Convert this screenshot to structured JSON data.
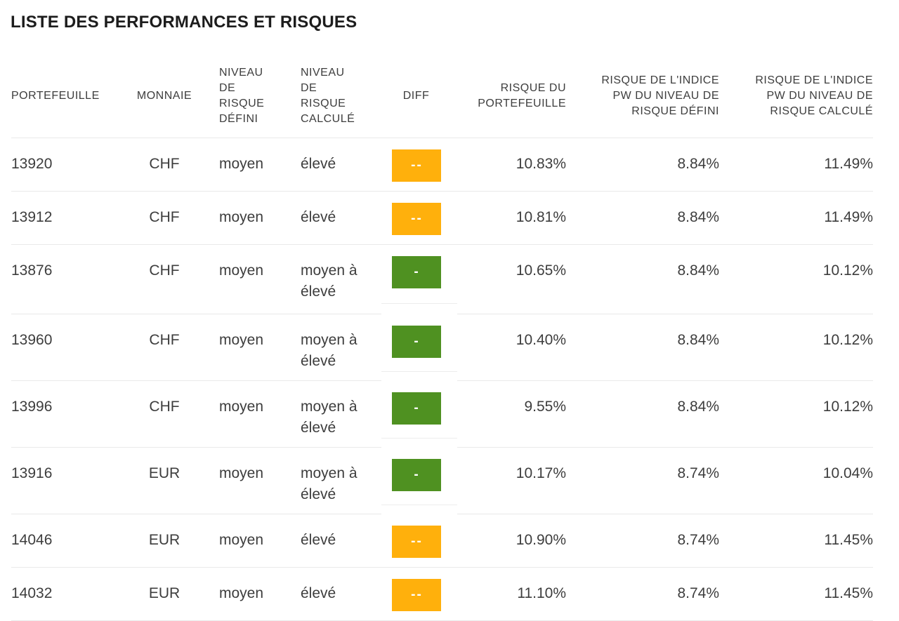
{
  "title": "LISTE DES PERFORMANCES ET RISQUES",
  "colors": {
    "diff_orange": "#FFB00C",
    "diff_green": "#4F9121",
    "row_separator": "#e9e9e9",
    "text": "#3d3d3d"
  },
  "table": {
    "columns": [
      {
        "label": "PORTEFEUILLE"
      },
      {
        "label": "MONNAIE"
      },
      {
        "label": "NIVEAU\nDE\nRISQUE\nDÉFINI"
      },
      {
        "label": "NIVEAU\nDE\nRISQUE\nCALCULÉ"
      },
      {
        "label": "DIFF"
      },
      {
        "label": "RISQUE DU\nPORTEFEUILLE"
      },
      {
        "label": "RISQUE DE L'INDICE\nPW DU NIVEAU DE\nRISQUE DÉFINI"
      },
      {
        "label": "RISQUE DE L'INDICE\nPW DU NIVEAU DE\nRISQUE CALCULÉ"
      }
    ],
    "rows": [
      {
        "portefeuille": "13920",
        "monnaie": "CHF",
        "niveau_defini": "moyen",
        "niveau_calcule": "élevé",
        "diff": "--",
        "diff_level": "orange",
        "risque_portefeuille": "10.83%",
        "risque_indice_defini": "8.84%",
        "risque_indice_calcule": "11.49%"
      },
      {
        "portefeuille": "13912",
        "monnaie": "CHF",
        "niveau_defini": "moyen",
        "niveau_calcule": "élevé",
        "diff": "--",
        "diff_level": "orange",
        "risque_portefeuille": "10.81%",
        "risque_indice_defini": "8.84%",
        "risque_indice_calcule": "11.49%"
      },
      {
        "portefeuille": "13876",
        "monnaie": "CHF",
        "niveau_defini": "moyen",
        "niveau_calcule": "moyen à\nélevé",
        "diff": "-",
        "diff_level": "green",
        "risque_portefeuille": "10.65%",
        "risque_indice_defini": "8.84%",
        "risque_indice_calcule": "10.12%"
      },
      {
        "portefeuille": "13960",
        "monnaie": "CHF",
        "niveau_defini": "moyen",
        "niveau_calcule": "moyen à\nélevé",
        "diff": "-",
        "diff_level": "green",
        "risque_portefeuille": "10.40%",
        "risque_indice_defini": "8.84%",
        "risque_indice_calcule": "10.12%"
      },
      {
        "portefeuille": "13996",
        "monnaie": "CHF",
        "niveau_defini": "moyen",
        "niveau_calcule": "moyen à\nélevé",
        "diff": "-",
        "diff_level": "green",
        "risque_portefeuille": "9.55%",
        "risque_indice_defini": "8.84%",
        "risque_indice_calcule": "10.12%"
      },
      {
        "portefeuille": "13916",
        "monnaie": "EUR",
        "niveau_defini": "moyen",
        "niveau_calcule": "moyen à\nélevé",
        "diff": "-",
        "diff_level": "green",
        "risque_portefeuille": "10.17%",
        "risque_indice_defini": "8.74%",
        "risque_indice_calcule": "10.04%"
      },
      {
        "portefeuille": "14046",
        "monnaie": "EUR",
        "niveau_defini": "moyen",
        "niveau_calcule": "élevé",
        "diff": "--",
        "diff_level": "orange",
        "risque_portefeuille": "10.90%",
        "risque_indice_defini": "8.74%",
        "risque_indice_calcule": "11.45%"
      },
      {
        "portefeuille": "14032",
        "monnaie": "EUR",
        "niveau_defini": "moyen",
        "niveau_calcule": "élevé",
        "diff": "--",
        "diff_level": "orange",
        "risque_portefeuille": "11.10%",
        "risque_indice_defini": "8.74%",
        "risque_indice_calcule": "11.45%"
      }
    ]
  }
}
